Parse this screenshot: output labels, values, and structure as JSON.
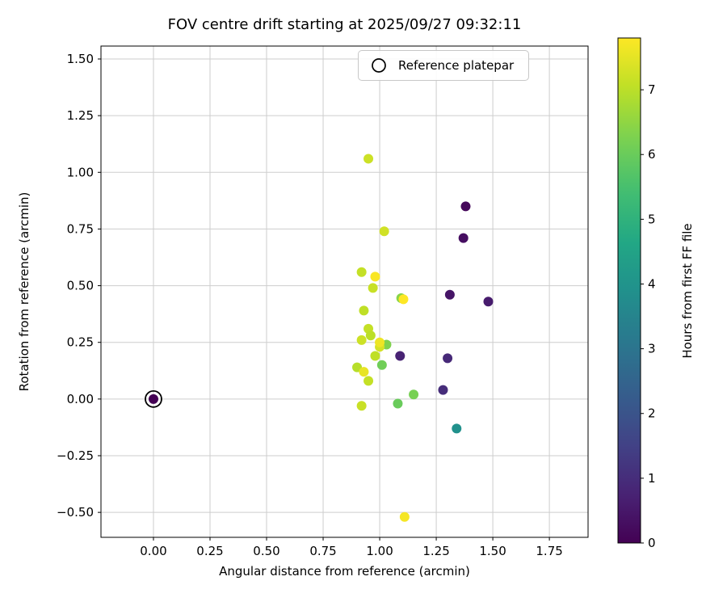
{
  "chart_data": {
    "type": "scatter",
    "title": "FOV centre drift starting at 2025/09/27 09:32:11",
    "xlabel": "Angular distance from reference (arcmin)",
    "ylabel": "Rotation from reference (arcmin)",
    "legend_label": "Reference platepar",
    "colorbar_label": "Hours from first FF file",
    "grid": true,
    "legend_position": "upper right",
    "xlim": [
      -0.232,
      1.921
    ],
    "ylim": [
      -0.61,
      1.557
    ],
    "xticks": [
      0.0,
      0.25,
      0.5,
      0.75,
      1.0,
      1.25,
      1.5,
      1.75
    ],
    "xtick_labels": [
      "0.00",
      "0.25",
      "0.50",
      "0.75",
      "1.00",
      "1.25",
      "1.50",
      "1.75"
    ],
    "yticks": [
      -0.5,
      -0.25,
      0.0,
      0.25,
      0.5,
      0.75,
      1.0,
      1.25,
      1.5
    ],
    "ytick_labels": [
      "−0.50",
      "−0.25",
      "0.00",
      "0.25",
      "0.50",
      "0.75",
      "1.00",
      "1.25",
      "1.50"
    ],
    "colorbar": {
      "vmin": 0,
      "vmax": 7.8,
      "ticks": [
        0,
        1,
        2,
        3,
        4,
        5,
        6,
        7
      ],
      "tick_labels": [
        "0",
        "1",
        "2",
        "3",
        "4",
        "5",
        "6",
        "7"
      ],
      "colormap": "viridis"
    },
    "reference_point": {
      "x": 0.0,
      "y": 0.0
    },
    "points": [
      {
        "x": 0.0,
        "y": 0.0,
        "hours": 0.0
      },
      {
        "x": 1.38,
        "y": 0.85,
        "hours": 0.15
      },
      {
        "x": 1.37,
        "y": 0.71,
        "hours": 0.3
      },
      {
        "x": 1.31,
        "y": 0.46,
        "hours": 0.45
      },
      {
        "x": 1.48,
        "y": 0.43,
        "hours": 0.6
      },
      {
        "x": 1.09,
        "y": 0.19,
        "hours": 0.75
      },
      {
        "x": 1.3,
        "y": 0.18,
        "hours": 0.9
      },
      {
        "x": 1.28,
        "y": 0.04,
        "hours": 1.0
      },
      {
        "x": 1.34,
        "y": -0.13,
        "hours": 3.9
      },
      {
        "x": 1.15,
        "y": 0.02,
        "hours": 6.2
      },
      {
        "x": 1.08,
        "y": -0.02,
        "hours": 6.0
      },
      {
        "x": 1.01,
        "y": 0.15,
        "hours": 6.1
      },
      {
        "x": 1.03,
        "y": 0.24,
        "hours": 6.3
      },
      {
        "x": 1.095,
        "y": 0.445,
        "hours": 6.4
      },
      {
        "x": 0.95,
        "y": 1.06,
        "hours": 7.2
      },
      {
        "x": 1.02,
        "y": 0.74,
        "hours": 7.25
      },
      {
        "x": 0.92,
        "y": 0.56,
        "hours": 7.1
      },
      {
        "x": 0.97,
        "y": 0.49,
        "hours": 7.15
      },
      {
        "x": 0.93,
        "y": 0.39,
        "hours": 7.05
      },
      {
        "x": 0.95,
        "y": 0.31,
        "hours": 7.1
      },
      {
        "x": 0.96,
        "y": 0.28,
        "hours": 7.0
      },
      {
        "x": 0.92,
        "y": 0.26,
        "hours": 7.2
      },
      {
        "x": 0.98,
        "y": 0.19,
        "hours": 7.05
      },
      {
        "x": 0.9,
        "y": 0.14,
        "hours": 6.95
      },
      {
        "x": 0.95,
        "y": 0.08,
        "hours": 7.1
      },
      {
        "x": 0.92,
        "y": -0.03,
        "hours": 7.15
      },
      {
        "x": 1.0,
        "y": 0.23,
        "hours": 7.3
      },
      {
        "x": 0.98,
        "y": 0.54,
        "hours": 7.75
      },
      {
        "x": 1.105,
        "y": 0.44,
        "hours": 7.8
      },
      {
        "x": 1.0,
        "y": 0.25,
        "hours": 7.6
      },
      {
        "x": 0.93,
        "y": 0.12,
        "hours": 7.55
      },
      {
        "x": 1.11,
        "y": -0.52,
        "hours": 7.7
      }
    ],
    "style": {
      "grid_color": "#cdcdcd",
      "axes_color": "#000000",
      "background": "#ffffff"
    }
  }
}
